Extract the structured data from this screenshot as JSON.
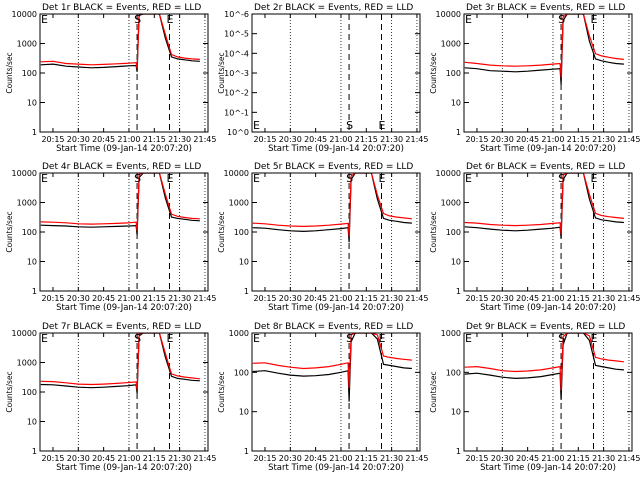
{
  "window": {
    "title": ""
  },
  "common": {
    "xlabel": "Start Time (09-Jan-14 20:07:20)",
    "ylabel": "Counts/sec",
    "xticks": [
      "20:15",
      "20:30",
      "20:45",
      "21:00",
      "21:15",
      "21:30",
      "21:45"
    ],
    "xtick_values": [
      20.25,
      20.5,
      20.75,
      21.0,
      21.25,
      21.5,
      21.75
    ],
    "xlim": [
      20.122,
      21.78
    ],
    "dotted_lines_at": [
      20.5,
      21.0,
      21.5,
      21.75
    ],
    "dashed_lines_at": [
      21.08,
      21.4
    ],
    "events_color": "#000000",
    "lld_color": "#ff0000"
  },
  "chart_data": [
    {
      "type": "line",
      "title": "Det 1r BLACK = Events, RED = LLD",
      "ylog": true,
      "ylim": [
        1,
        10000
      ],
      "yticks": [
        "1",
        "10",
        "100",
        "1000",
        "10000"
      ],
      "markers": [
        "S",
        "E"
      ],
      "series": [
        {
          "name": "Events",
          "color": "#000000",
          "x": [
            20.13,
            20.25,
            20.38,
            20.5,
            20.63,
            20.75,
            20.88,
            21.0,
            21.07,
            21.08,
            21.1,
            21.14,
            21.2,
            21.3,
            21.36,
            21.42,
            21.48,
            21.55,
            21.62,
            21.7
          ],
          "y": [
            190,
            200,
            170,
            160,
            150,
            155,
            165,
            175,
            180,
            110,
            9000,
            10000,
            10000,
            10000,
            1500,
            350,
            300,
            280,
            260,
            250
          ]
        },
        {
          "name": "LLD",
          "color": "#ff0000",
          "x": [
            20.13,
            20.25,
            20.38,
            20.5,
            20.63,
            20.75,
            20.88,
            21.0,
            21.07,
            21.08,
            21.1,
            21.14,
            21.2,
            21.3,
            21.36,
            21.42,
            21.48,
            21.55,
            21.62,
            21.7
          ],
          "y": [
            240,
            250,
            210,
            200,
            190,
            195,
            205,
            215,
            225,
            140,
            10000,
            10000,
            10000,
            10000,
            2000,
            420,
            350,
            320,
            300,
            290
          ]
        }
      ]
    },
    {
      "type": "line",
      "title": "Det 2r BLACK = Events, RED = LLD",
      "ylog": true,
      "ylim": [
        1,
        1e-06
      ],
      "yticks": [
        "10^0",
        "10^-1",
        "10^-2",
        "10^-3",
        "10^-4",
        "10^-5",
        "10^-6"
      ],
      "markers": [
        "S",
        "E"
      ],
      "series": []
    },
    {
      "type": "line",
      "title": "Det 3r BLACK = Events, RED = LLD",
      "ylog": true,
      "ylim": [
        1,
        10000
      ],
      "yticks": [
        "1",
        "10",
        "100",
        "1000",
        "10000"
      ],
      "markers": [
        "S",
        "E"
      ],
      "series": [
        {
          "name": "Events",
          "color": "#000000",
          "x": [
            20.13,
            20.25,
            20.38,
            20.5,
            20.63,
            20.75,
            20.88,
            21.0,
            21.07,
            21.08,
            21.1,
            21.14,
            21.2,
            21.3,
            21.36,
            21.42,
            21.48,
            21.55,
            21.62,
            21.7
          ],
          "y": [
            150,
            140,
            120,
            115,
            110,
            115,
            125,
            135,
            140,
            40,
            6000,
            10000,
            10000,
            10000,
            1200,
            300,
            260,
            230,
            210,
            200
          ]
        },
        {
          "name": "LLD",
          "color": "#ff0000",
          "x": [
            20.13,
            20.25,
            20.38,
            20.5,
            20.63,
            20.75,
            20.88,
            21.0,
            21.07,
            21.08,
            21.1,
            21.14,
            21.2,
            21.3,
            21.36,
            21.42,
            21.48,
            21.55,
            21.62,
            21.7
          ],
          "y": [
            230,
            210,
            185,
            175,
            170,
            175,
            185,
            200,
            210,
            70,
            8000,
            10000,
            10000,
            10000,
            1800,
            450,
            380,
            340,
            310,
            290
          ]
        }
      ]
    },
    {
      "type": "line",
      "title": "Det 4r BLACK = Events, RED = LLD",
      "ylog": true,
      "ylim": [
        1,
        10000
      ],
      "yticks": [
        "1",
        "10",
        "100",
        "1000",
        "10000"
      ],
      "markers": [
        "S",
        "E"
      ],
      "series": [
        {
          "name": "Events",
          "color": "#000000",
          "x": [
            20.13,
            20.25,
            20.38,
            20.5,
            20.63,
            20.75,
            20.88,
            21.0,
            21.07,
            21.08,
            21.1,
            21.14,
            21.2,
            21.3,
            21.36,
            21.42,
            21.48,
            21.55,
            21.62,
            21.7
          ],
          "y": [
            170,
            165,
            160,
            150,
            145,
            150,
            155,
            160,
            165,
            80,
            7000,
            10000,
            10000,
            10000,
            1400,
            320,
            290,
            270,
            250,
            240
          ]
        },
        {
          "name": "LLD",
          "color": "#ff0000",
          "x": [
            20.13,
            20.25,
            20.38,
            20.5,
            20.63,
            20.75,
            20.88,
            21.0,
            21.07,
            21.08,
            21.1,
            21.14,
            21.2,
            21.3,
            21.36,
            21.42,
            21.48,
            21.55,
            21.62,
            21.7
          ],
          "y": [
            220,
            215,
            205,
            190,
            185,
            190,
            195,
            205,
            215,
            110,
            9000,
            10000,
            10000,
            10000,
            1900,
            400,
            340,
            310,
            290,
            280
          ]
        }
      ]
    },
    {
      "type": "line",
      "title": "Det 5r BLACK = Events, RED = LLD",
      "ylog": true,
      "ylim": [
        1,
        10000
      ],
      "yticks": [
        "1",
        "10",
        "100",
        "1000",
        "10000"
      ],
      "markers": [
        "S",
        "E"
      ],
      "series": [
        {
          "name": "Events",
          "color": "#000000",
          "x": [
            20.13,
            20.25,
            20.38,
            20.5,
            20.63,
            20.75,
            20.88,
            21.0,
            21.07,
            21.08,
            21.1,
            21.14,
            21.2,
            21.3,
            21.36,
            21.42,
            21.48,
            21.55,
            21.62,
            21.7
          ],
          "y": [
            140,
            135,
            120,
            110,
            105,
            110,
            120,
            130,
            140,
            45,
            6000,
            10000,
            10000,
            10000,
            1300,
            290,
            250,
            230,
            210,
            200
          ]
        },
        {
          "name": "LLD",
          "color": "#ff0000",
          "x": [
            20.13,
            20.25,
            20.38,
            20.5,
            20.63,
            20.75,
            20.88,
            21.0,
            21.07,
            21.08,
            21.1,
            21.14,
            21.2,
            21.3,
            21.36,
            21.42,
            21.48,
            21.55,
            21.62,
            21.7
          ],
          "y": [
            200,
            190,
            170,
            160,
            155,
            160,
            170,
            185,
            195,
            70,
            8000,
            10000,
            10000,
            10000,
            1800,
            420,
            350,
            320,
            300,
            280
          ]
        }
      ]
    },
    {
      "type": "line",
      "title": "Det 6r BLACK = Events, RED = LLD",
      "ylog": true,
      "ylim": [
        1,
        10000
      ],
      "yticks": [
        "1",
        "10",
        "100",
        "1000",
        "10000"
      ],
      "markers": [
        "S",
        "E"
      ],
      "series": [
        {
          "name": "Events",
          "color": "#000000",
          "x": [
            20.13,
            20.25,
            20.38,
            20.5,
            20.63,
            20.75,
            20.88,
            21.0,
            21.07,
            21.08,
            21.1,
            21.14,
            21.2,
            21.3,
            21.36,
            21.42,
            21.48,
            21.55,
            21.62,
            21.7
          ],
          "y": [
            150,
            140,
            125,
            115,
            110,
            115,
            125,
            135,
            145,
            60,
            6000,
            10000,
            10000,
            10000,
            1300,
            300,
            260,
            240,
            220,
            210
          ]
        },
        {
          "name": "LLD",
          "color": "#ff0000",
          "x": [
            20.13,
            20.25,
            20.38,
            20.5,
            20.63,
            20.75,
            20.88,
            21.0,
            21.07,
            21.08,
            21.1,
            21.14,
            21.2,
            21.3,
            21.36,
            21.42,
            21.48,
            21.55,
            21.62,
            21.7
          ],
          "y": [
            210,
            200,
            180,
            170,
            165,
            170,
            180,
            195,
            205,
            85,
            8500,
            10000,
            10000,
            10000,
            1900,
            430,
            360,
            330,
            310,
            290
          ]
        }
      ]
    },
    {
      "type": "line",
      "title": "Det 7r BLACK = Events, RED = LLD",
      "ylog": true,
      "ylim": [
        1,
        10000
      ],
      "yticks": [
        "1",
        "10",
        "100",
        "1000",
        "10000"
      ],
      "markers": [
        "S",
        "E"
      ],
      "series": [
        {
          "name": "Events",
          "color": "#000000",
          "x": [
            20.13,
            20.25,
            20.38,
            20.5,
            20.63,
            20.75,
            20.88,
            21.0,
            21.07,
            21.08,
            21.1,
            21.14,
            21.2,
            21.3,
            21.36,
            21.42,
            21.48,
            21.55,
            21.62,
            21.7
          ],
          "y": [
            180,
            175,
            160,
            145,
            140,
            145,
            155,
            165,
            175,
            90,
            8000,
            10000,
            10000,
            10000,
            1500,
            340,
            290,
            270,
            250,
            240
          ]
        },
        {
          "name": "LLD",
          "color": "#ff0000",
          "x": [
            20.13,
            20.25,
            20.38,
            20.5,
            20.63,
            20.75,
            20.88,
            21.0,
            21.07,
            21.08,
            21.1,
            21.14,
            21.2,
            21.3,
            21.36,
            21.42,
            21.48,
            21.55,
            21.62,
            21.7
          ],
          "y": [
            230,
            225,
            205,
            185,
            180,
            185,
            195,
            210,
            220,
            120,
            9500,
            10000,
            10000,
            10000,
            2000,
            410,
            350,
            320,
            300,
            280
          ]
        }
      ]
    },
    {
      "type": "line",
      "title": "Det 8r BLACK = Events, RED = LLD",
      "ylog": true,
      "ylim": [
        1,
        1000
      ],
      "yticks": [
        "1",
        "10",
        "100",
        "1000"
      ],
      "markers": [
        "S",
        "E"
      ],
      "series": [
        {
          "name": "Events",
          "color": "#000000",
          "x": [
            20.13,
            20.25,
            20.38,
            20.5,
            20.63,
            20.75,
            20.88,
            21.0,
            21.07,
            21.08,
            21.1,
            21.14,
            21.2,
            21.3,
            21.36,
            21.42,
            21.48,
            21.55,
            21.62,
            21.7
          ],
          "y": [
            105,
            110,
            95,
            85,
            80,
            82,
            88,
            100,
            110,
            18,
            600,
            1000,
            1000,
            1000,
            700,
            160,
            150,
            140,
            130,
            125
          ]
        },
        {
          "name": "LLD",
          "color": "#ff0000",
          "x": [
            20.13,
            20.25,
            20.38,
            20.5,
            20.63,
            20.75,
            20.88,
            21.0,
            21.07,
            21.08,
            21.1,
            21.14,
            21.2,
            21.3,
            21.36,
            21.42,
            21.48,
            21.55,
            21.62,
            21.7
          ],
          "y": [
            170,
            175,
            150,
            135,
            125,
            130,
            140,
            160,
            175,
            40,
            900,
            1000,
            1000,
            1000,
            900,
            260,
            240,
            225,
            215,
            205
          ]
        }
      ]
    },
    {
      "type": "line",
      "title": "Det 9r BLACK = Events, RED = LLD",
      "ylog": true,
      "ylim": [
        1,
        1000
      ],
      "yticks": [
        "1",
        "10",
        "100",
        "1000"
      ],
      "markers": [
        "S",
        "E"
      ],
      "series": [
        {
          "name": "Events",
          "color": "#000000",
          "x": [
            20.13,
            20.25,
            20.38,
            20.5,
            20.63,
            20.75,
            20.88,
            21.0,
            21.07,
            21.08,
            21.1,
            21.14,
            21.2,
            21.3,
            21.36,
            21.42,
            21.48,
            21.55,
            21.62,
            21.7
          ],
          "y": [
            90,
            95,
            85,
            75,
            70,
            72,
            78,
            88,
            95,
            20,
            500,
            1000,
            1000,
            1000,
            650,
            150,
            140,
            130,
            120,
            115
          ]
        },
        {
          "name": "LLD",
          "color": "#ff0000",
          "x": [
            20.13,
            20.25,
            20.38,
            20.5,
            20.63,
            20.75,
            20.88,
            21.0,
            21.07,
            21.08,
            21.1,
            21.14,
            21.2,
            21.3,
            21.36,
            21.42,
            21.48,
            21.55,
            21.62,
            21.7
          ],
          "y": [
            135,
            140,
            125,
            110,
            105,
            108,
            115,
            130,
            140,
            35,
            800,
            1000,
            1000,
            1000,
            850,
            240,
            220,
            205,
            195,
            185
          ]
        }
      ]
    }
  ]
}
